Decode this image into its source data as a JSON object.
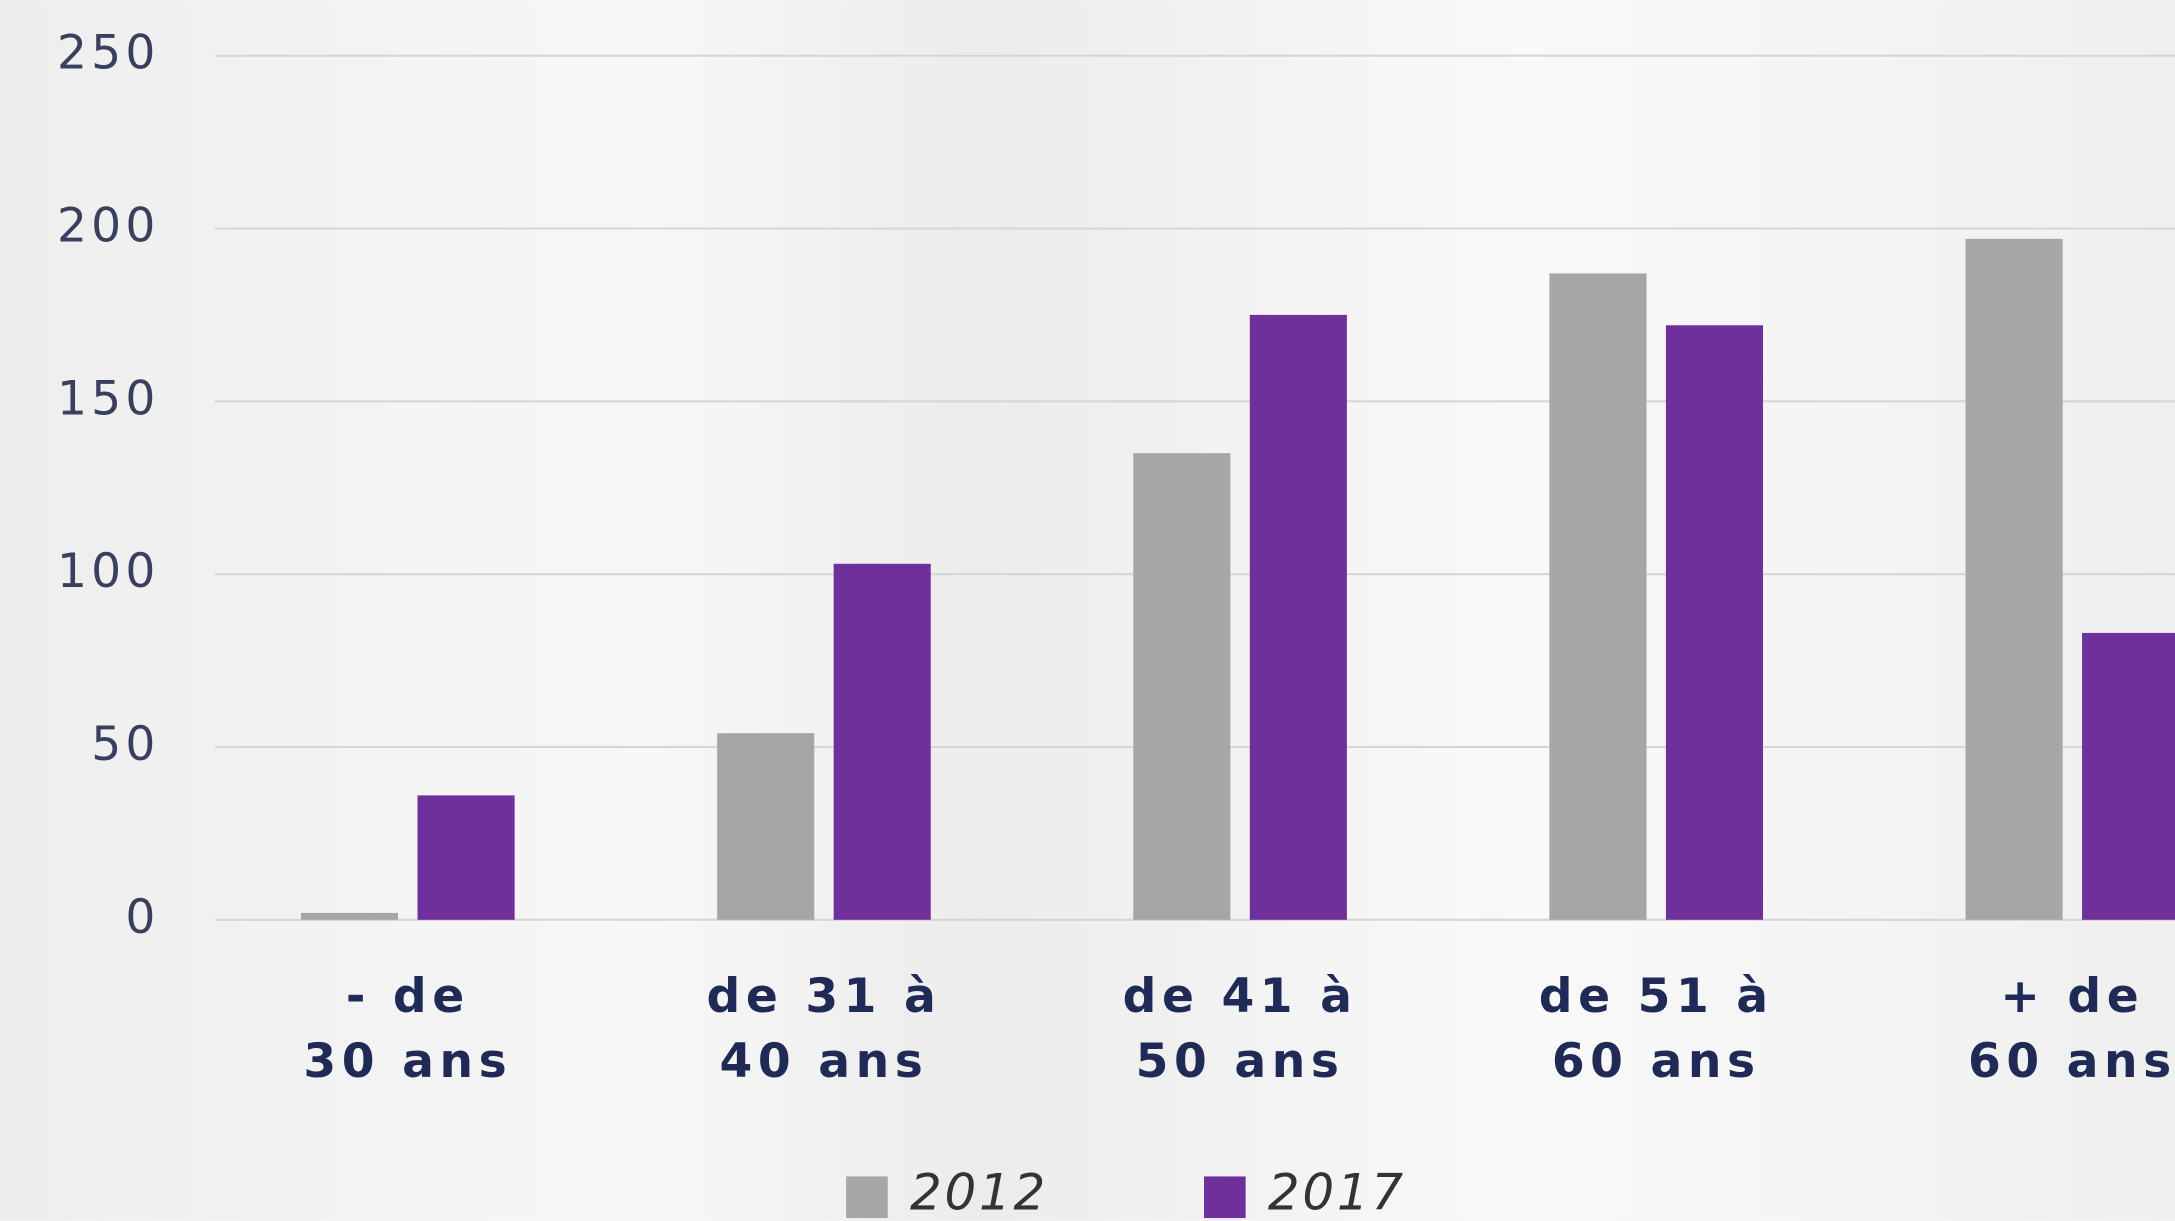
{
  "chart_data": {
    "type": "bar",
    "categories": [
      [
        "- de",
        "30 ans"
      ],
      [
        "de 31 à",
        "40 ans"
      ],
      [
        "de 41 à",
        "50 ans"
      ],
      [
        "de 51 à",
        "60 ans"
      ],
      [
        "+ de",
        "60 ans"
      ]
    ],
    "series": [
      {
        "name": "2012",
        "color": "#a6a6a6",
        "values": [
          2,
          54,
          135,
          187,
          197
        ]
      },
      {
        "name": "2017",
        "color": "#70309b",
        "values": [
          36,
          103,
          175,
          172,
          83
        ]
      }
    ],
    "ylim": [
      0,
      250
    ],
    "yticks": [
      0,
      50,
      100,
      150,
      200,
      250
    ],
    "grid": true,
    "legend": "bottom"
  }
}
